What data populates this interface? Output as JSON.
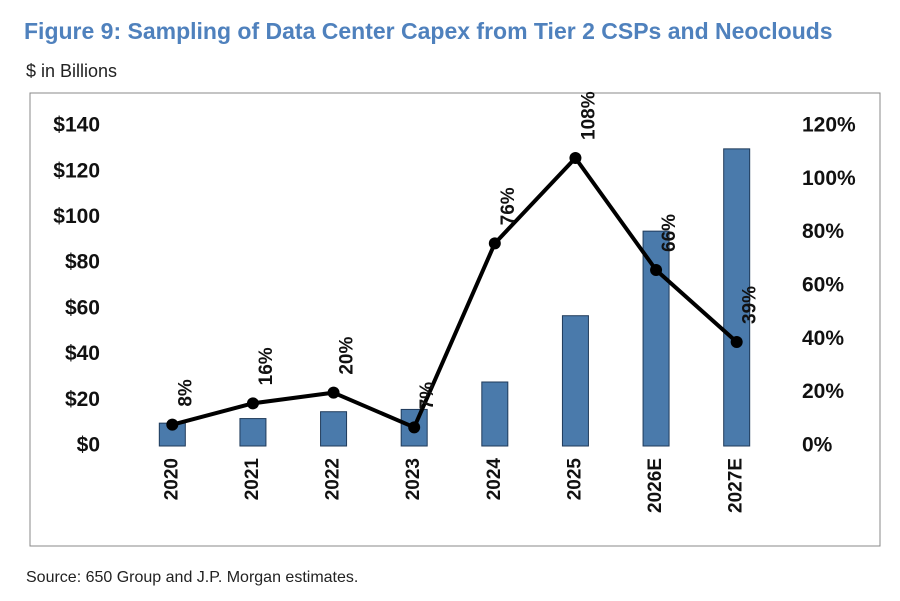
{
  "chart_data": {
    "type": "bar-line",
    "title": "Figure 9: Sampling of Data Center Capex from Tier 2 CSPs and Neoclouds",
    "subtitle": "$ in Billions",
    "source": "Source: 650 Group and J.P. Morgan estimates.",
    "categories": [
      "2020",
      "2021",
      "2022",
      "2023",
      "2024",
      "2025",
      "2026E",
      "2027E"
    ],
    "series": [
      {
        "type": "bar",
        "color": "#4a7aab",
        "values": [
          10,
          12,
          15,
          16,
          28,
          57,
          94,
          130
        ]
      },
      {
        "type": "line",
        "color": "#000000",
        "axis": "y2",
        "values": [
          8,
          16,
          20,
          7,
          76,
          108,
          66,
          39
        ],
        "value_labels": [
          "8%",
          "16%",
          "20%",
          "7%",
          "76%",
          "108%",
          "66%",
          "39%"
        ]
      }
    ],
    "ylim": [
      0,
      140
    ],
    "yticks": [
      {
        "value": 0,
        "label": "$0"
      },
      {
        "value": 20,
        "label": "$20"
      },
      {
        "value": 40,
        "label": "$40"
      },
      {
        "value": 60,
        "label": "$60"
      },
      {
        "value": 80,
        "label": "$80"
      },
      {
        "value": 100,
        "label": "$100"
      },
      {
        "value": 120,
        "label": "$120"
      },
      {
        "value": 140,
        "label": "$140"
      }
    ],
    "y2lim": [
      0,
      120
    ],
    "y2ticks": [
      {
        "value": 0,
        "label": "0%"
      },
      {
        "value": 20,
        "label": "20%"
      },
      {
        "value": 40,
        "label": "40%"
      },
      {
        "value": 60,
        "label": "60%"
      },
      {
        "value": 80,
        "label": "80%"
      },
      {
        "value": 100,
        "label": "100%"
      },
      {
        "value": 120,
        "label": "120%"
      }
    ],
    "grid": false
  }
}
